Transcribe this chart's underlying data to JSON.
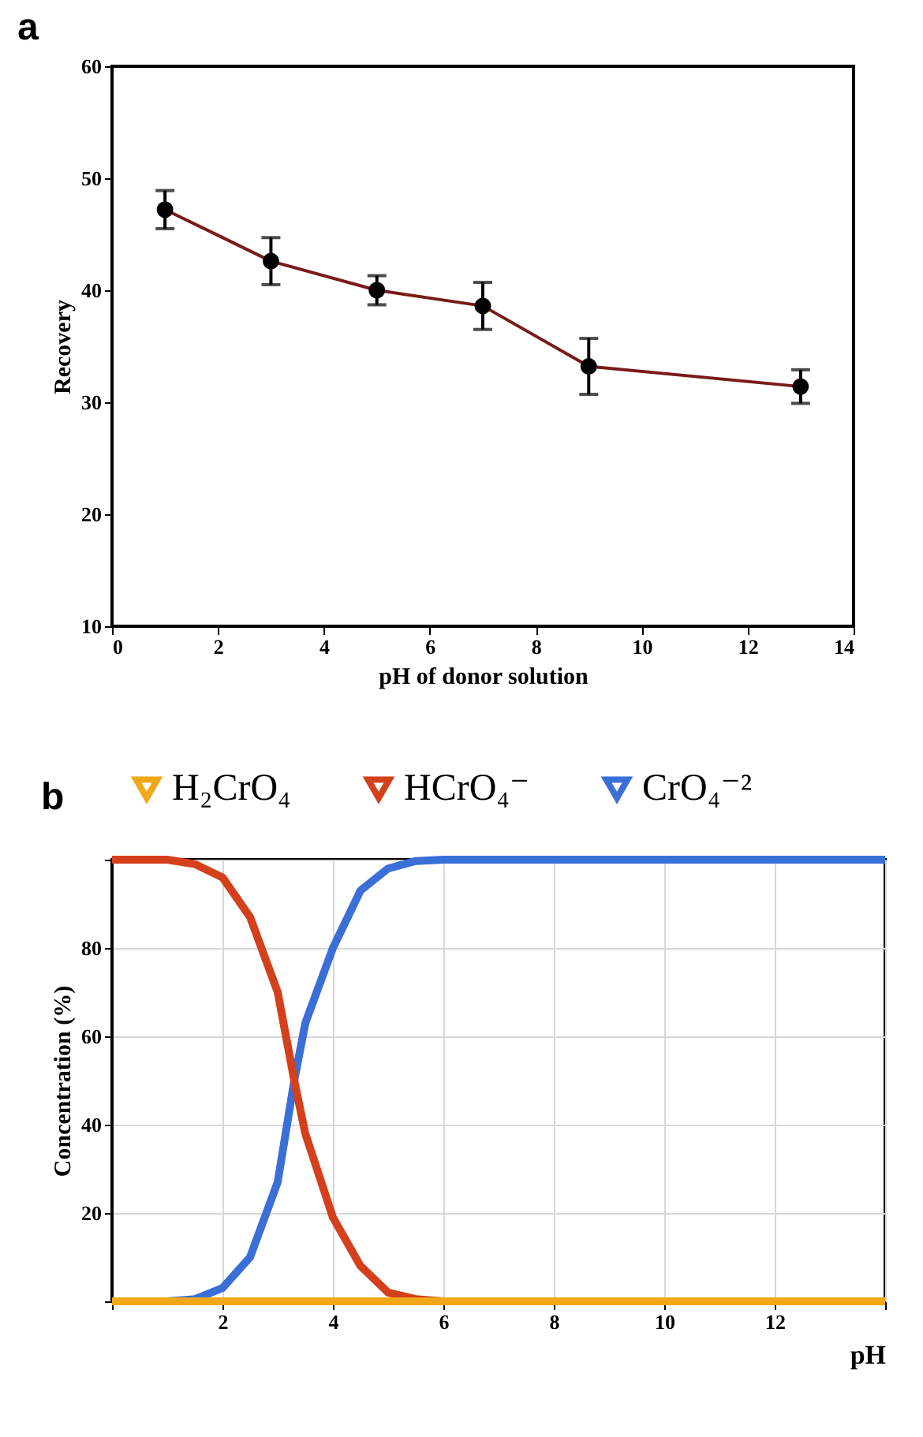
{
  "chart_data": [
    {
      "type": "line",
      "title": "a",
      "xlabel": "pH of donor solution",
      "ylabel": "Recovery",
      "x": [
        1,
        3,
        5,
        7,
        9,
        13
      ],
      "series": [
        {
          "color": "#7a1a1a",
          "values": [
            47.2,
            42.6,
            40.0,
            38.6,
            33.2,
            31.4
          ],
          "errors": [
            1.7,
            2.1,
            1.3,
            2.1,
            2.5,
            1.5
          ]
        }
      ],
      "xlim": [
        0,
        14
      ],
      "xticks": [
        0,
        2,
        4,
        6,
        8,
        10,
        12,
        14
      ],
      "ylim": [
        10,
        60
      ],
      "yticks": [
        10,
        20,
        30,
        40,
        50,
        60
      ],
      "marker": "circle",
      "grid": false
    },
    {
      "type": "line",
      "title": "b",
      "xlabel": "pH",
      "ylabel": "Concentration (%)",
      "x": [
        0,
        1,
        1.5,
        2,
        2.5,
        3,
        3.3,
        3.5,
        4,
        4.5,
        5,
        5.5,
        6,
        8,
        10,
        12,
        14
      ],
      "series": [
        {
          "name": "H₂CrO₄",
          "color": "#f0a818",
          "values": [
            0,
            0,
            0,
            0,
            0,
            0,
            0,
            0,
            0,
            0,
            0,
            0,
            0,
            0,
            0,
            0,
            0
          ]
        },
        {
          "name": "HCrO₄⁻",
          "color": "#d4401c",
          "values": [
            100,
            100,
            99,
            96,
            87,
            70,
            50,
            38,
            19,
            8,
            2,
            0.5,
            0,
            0,
            null,
            null,
            null
          ]
        },
        {
          "name": "CrO₄⁻²",
          "color": "#3a6fd8",
          "values": [
            0,
            0,
            0.5,
            3,
            10,
            27,
            50,
            63,
            80,
            93,
            98,
            99.7,
            100,
            100,
            100,
            100,
            100
          ]
        }
      ],
      "xlim": [
        0,
        14
      ],
      "xticks": [
        {
          "value": 0,
          "label": null
        },
        2,
        4,
        6,
        8,
        10,
        12,
        {
          "value": 14,
          "label": null
        }
      ],
      "ylim": [
        0,
        100
      ],
      "yticks": [
        {
          "value": 0,
          "label": null
        },
        20,
        40,
        60,
        80,
        {
          "value": 100,
          "label": null
        }
      ],
      "grid": true,
      "legend": "top",
      "marker": "none"
    }
  ]
}
